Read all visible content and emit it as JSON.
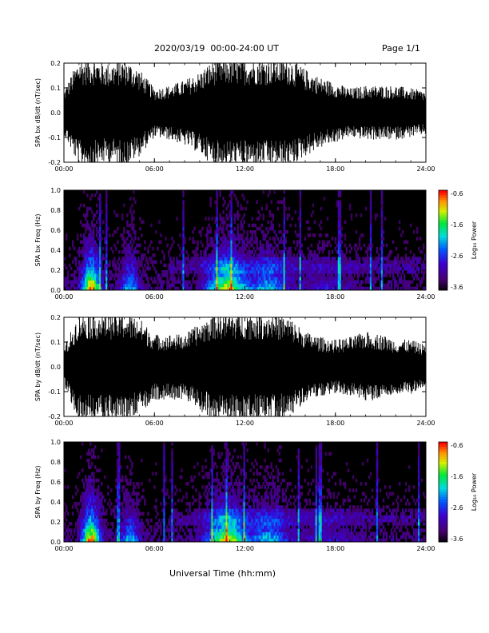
{
  "header": {
    "title": "2020/03/19  00:00-24:00 UT",
    "page": "Page 1/1"
  },
  "x_axis_title": "Universal Time (hh:mm)",
  "chart_data": [
    {
      "type": "line",
      "ylabel": "SPA bx dB/dt (nT/sec)",
      "xlim": [
        "00:00",
        "24:00"
      ],
      "ylim": [
        -0.2,
        0.2
      ],
      "x_ticks": [
        "00:00",
        "06:00",
        "12:00",
        "18:00",
        "24:00"
      ],
      "y_ticks": [
        "-0.2",
        "-0.1",
        "0.0",
        "0.1",
        "0.2"
      ],
      "color": "#000000",
      "series": [
        {
          "x_hours": [
            0,
            1,
            2,
            3,
            4,
            5,
            6,
            7,
            8,
            9,
            10,
            11,
            12,
            13,
            14,
            15,
            16,
            17,
            18,
            19,
            20,
            21,
            22,
            23,
            24
          ],
          "envelope_nT_per_sec": [
            0.08,
            0.2,
            0.2,
            0.18,
            0.2,
            0.16,
            0.09,
            0.1,
            0.12,
            0.15,
            0.2,
            0.2,
            0.2,
            0.2,
            0.2,
            0.2,
            0.16,
            0.13,
            0.11,
            0.09,
            0.1,
            0.1,
            0.1,
            0.09,
            0.08
          ]
        }
      ]
    },
    {
      "type": "heatmap",
      "ylabel": "SPA bx Freq (Hz)",
      "xlim": [
        "00:00",
        "24:00"
      ],
      "ylim": [
        0.0,
        1.0
      ],
      "x_ticks": [
        "00:00",
        "06:00",
        "12:00",
        "18:00",
        "24:00"
      ],
      "y_ticks": [
        "0.0",
        "0.2",
        "0.4",
        "0.6",
        "0.8",
        "1.0"
      ],
      "colorbar": {
        "label": "Log₁₀ Power",
        "ticks": [
          "-0.6",
          "-1.6",
          "-2.6",
          "-3.6"
        ],
        "range": [
          -3.6,
          -0.6
        ]
      }
    },
    {
      "type": "line",
      "ylabel": "SPA by dB/dt (nT/sec)",
      "xlim": [
        "00:00",
        "24:00"
      ],
      "ylim": [
        -0.2,
        0.2
      ],
      "x_ticks": [
        "00:00",
        "06:00",
        "12:00",
        "18:00",
        "24:00"
      ],
      "y_ticks": [
        "-0.2",
        "-0.1",
        "0.0",
        "0.1",
        "0.2"
      ],
      "color": "#000000",
      "series": [
        {
          "x_hours": [
            0,
            1,
            2,
            3,
            4,
            5,
            6,
            7,
            8,
            9,
            10,
            11,
            12,
            13,
            14,
            15,
            16,
            17,
            18,
            19,
            20,
            21,
            22,
            23,
            24
          ],
          "envelope_nT_per_sec": [
            0.07,
            0.2,
            0.2,
            0.2,
            0.2,
            0.18,
            0.12,
            0.12,
            0.12,
            0.16,
            0.2,
            0.2,
            0.2,
            0.2,
            0.2,
            0.18,
            0.13,
            0.11,
            0.1,
            0.11,
            0.13,
            0.12,
            0.1,
            0.1,
            0.08
          ]
        }
      ]
    },
    {
      "type": "heatmap",
      "ylabel": "SPA by Freq (Hz)",
      "xlim": [
        "00:00",
        "24:00"
      ],
      "ylim": [
        0.0,
        1.0
      ],
      "x_ticks": [
        "00:00",
        "06:00",
        "12:00",
        "18:00",
        "24:00"
      ],
      "y_ticks": [
        "0.0",
        "0.2",
        "0.4",
        "0.6",
        "0.8",
        "1.0"
      ],
      "colorbar": {
        "label": "Log₁₀ Power",
        "ticks": [
          "-0.6",
          "-1.6",
          "-2.6",
          "-3.6"
        ],
        "range": [
          -3.6,
          -0.6
        ]
      }
    }
  ]
}
